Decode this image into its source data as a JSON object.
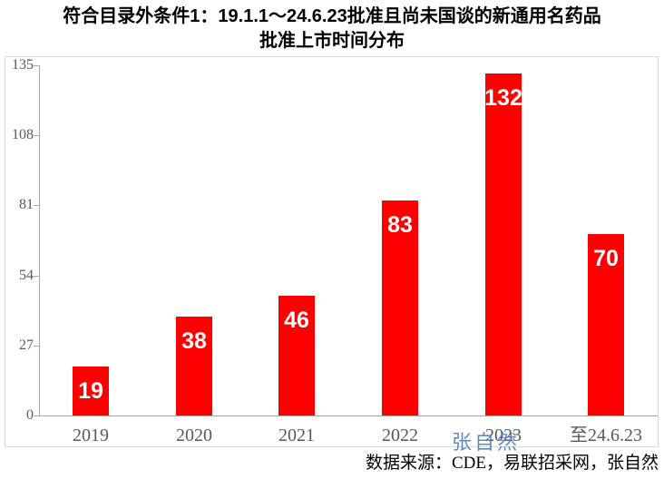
{
  "title": {
    "line1": "符合目录外条件1：19.1.1～24.6.23批准且尚未国谈的新通用名药品",
    "line2": "批准上市时间分布"
  },
  "watermark": "张自然",
  "source_note": "数据来源：CDE，易联招采网，张自然",
  "colors": {
    "bar": "#fe0000",
    "value_label": "#ffffff",
    "axis_line": "#a6a6a6",
    "tick_label": "#595959",
    "chart_border": "#d9d9d9",
    "watermark": "#4e7fbf",
    "title": "#000000"
  },
  "chart_data": {
    "type": "bar",
    "title": "符合目录外条件1：19.1.1～24.6.23批准且尚未国谈的新通用名药品 批准上市时间分布",
    "categories": [
      "2019",
      "2020",
      "2021",
      "2022",
      "2023",
      "至24.6.23"
    ],
    "values": [
      19,
      38,
      46,
      83,
      132,
      70
    ],
    "xlabel": "",
    "ylabel": "",
    "ylim": [
      0,
      135
    ],
    "yticks": [
      0,
      27,
      54,
      81,
      108,
      135
    ],
    "grid": false,
    "legend": false,
    "data_label_position": "inside-end",
    "bar_color": "#fe0000"
  }
}
